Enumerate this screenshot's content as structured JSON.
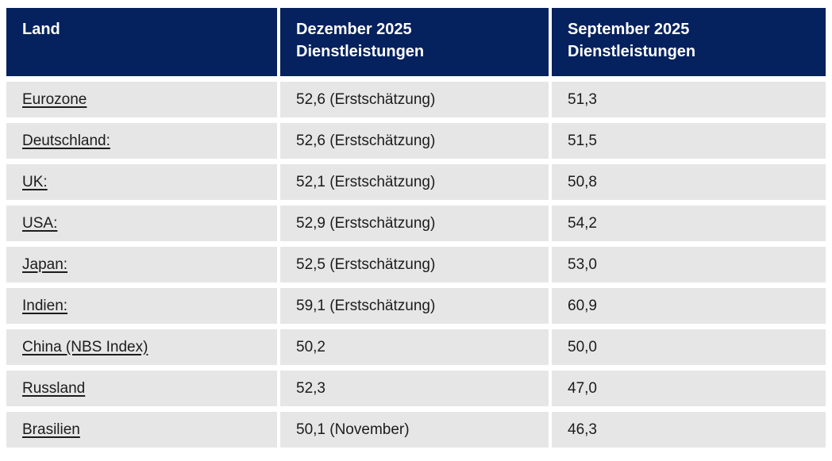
{
  "table": {
    "columns": [
      {
        "key": "land",
        "label": "Land"
      },
      {
        "key": "dez",
        "label": "Dezember 2025 Dienstleistungen"
      },
      {
        "key": "sep",
        "label": "September 2025 Dienstleistungen"
      }
    ],
    "rows": [
      {
        "land": "Eurozone",
        "dez": "52,6 (Erstschätzung)",
        "sep": "51,3"
      },
      {
        "land": "Deutschland:",
        "dez": "52,6 (Erstschätzung)",
        "sep": "51,5"
      },
      {
        "land": "UK:",
        "dez": "52,1 (Erstschätzung)",
        "sep": "50,8"
      },
      {
        "land": "USA:",
        "dez": "52,9 (Erstschätzung)",
        "sep": "54,2"
      },
      {
        "land": "Japan:",
        "dez": "52,5 (Erstschätzung)",
        "sep": "53,0"
      },
      {
        "land": "Indien:",
        "dez": "59,1 (Erstschätzung)",
        "sep": "60,9"
      },
      {
        "land": "China (NBS Index)",
        "dez": "50,2",
        "sep": "50,0"
      },
      {
        "land": "Russland",
        "dez": "52,3",
        "sep": "47,0"
      },
      {
        "land": "Brasilien",
        "dez": "50,1 (November)",
        "sep": "46,3"
      }
    ],
    "colors": {
      "header_bg": "#05215e",
      "header_text": "#ffffff",
      "row_bg": "#e6e6e6",
      "row_text": "#1c1c1c"
    }
  }
}
